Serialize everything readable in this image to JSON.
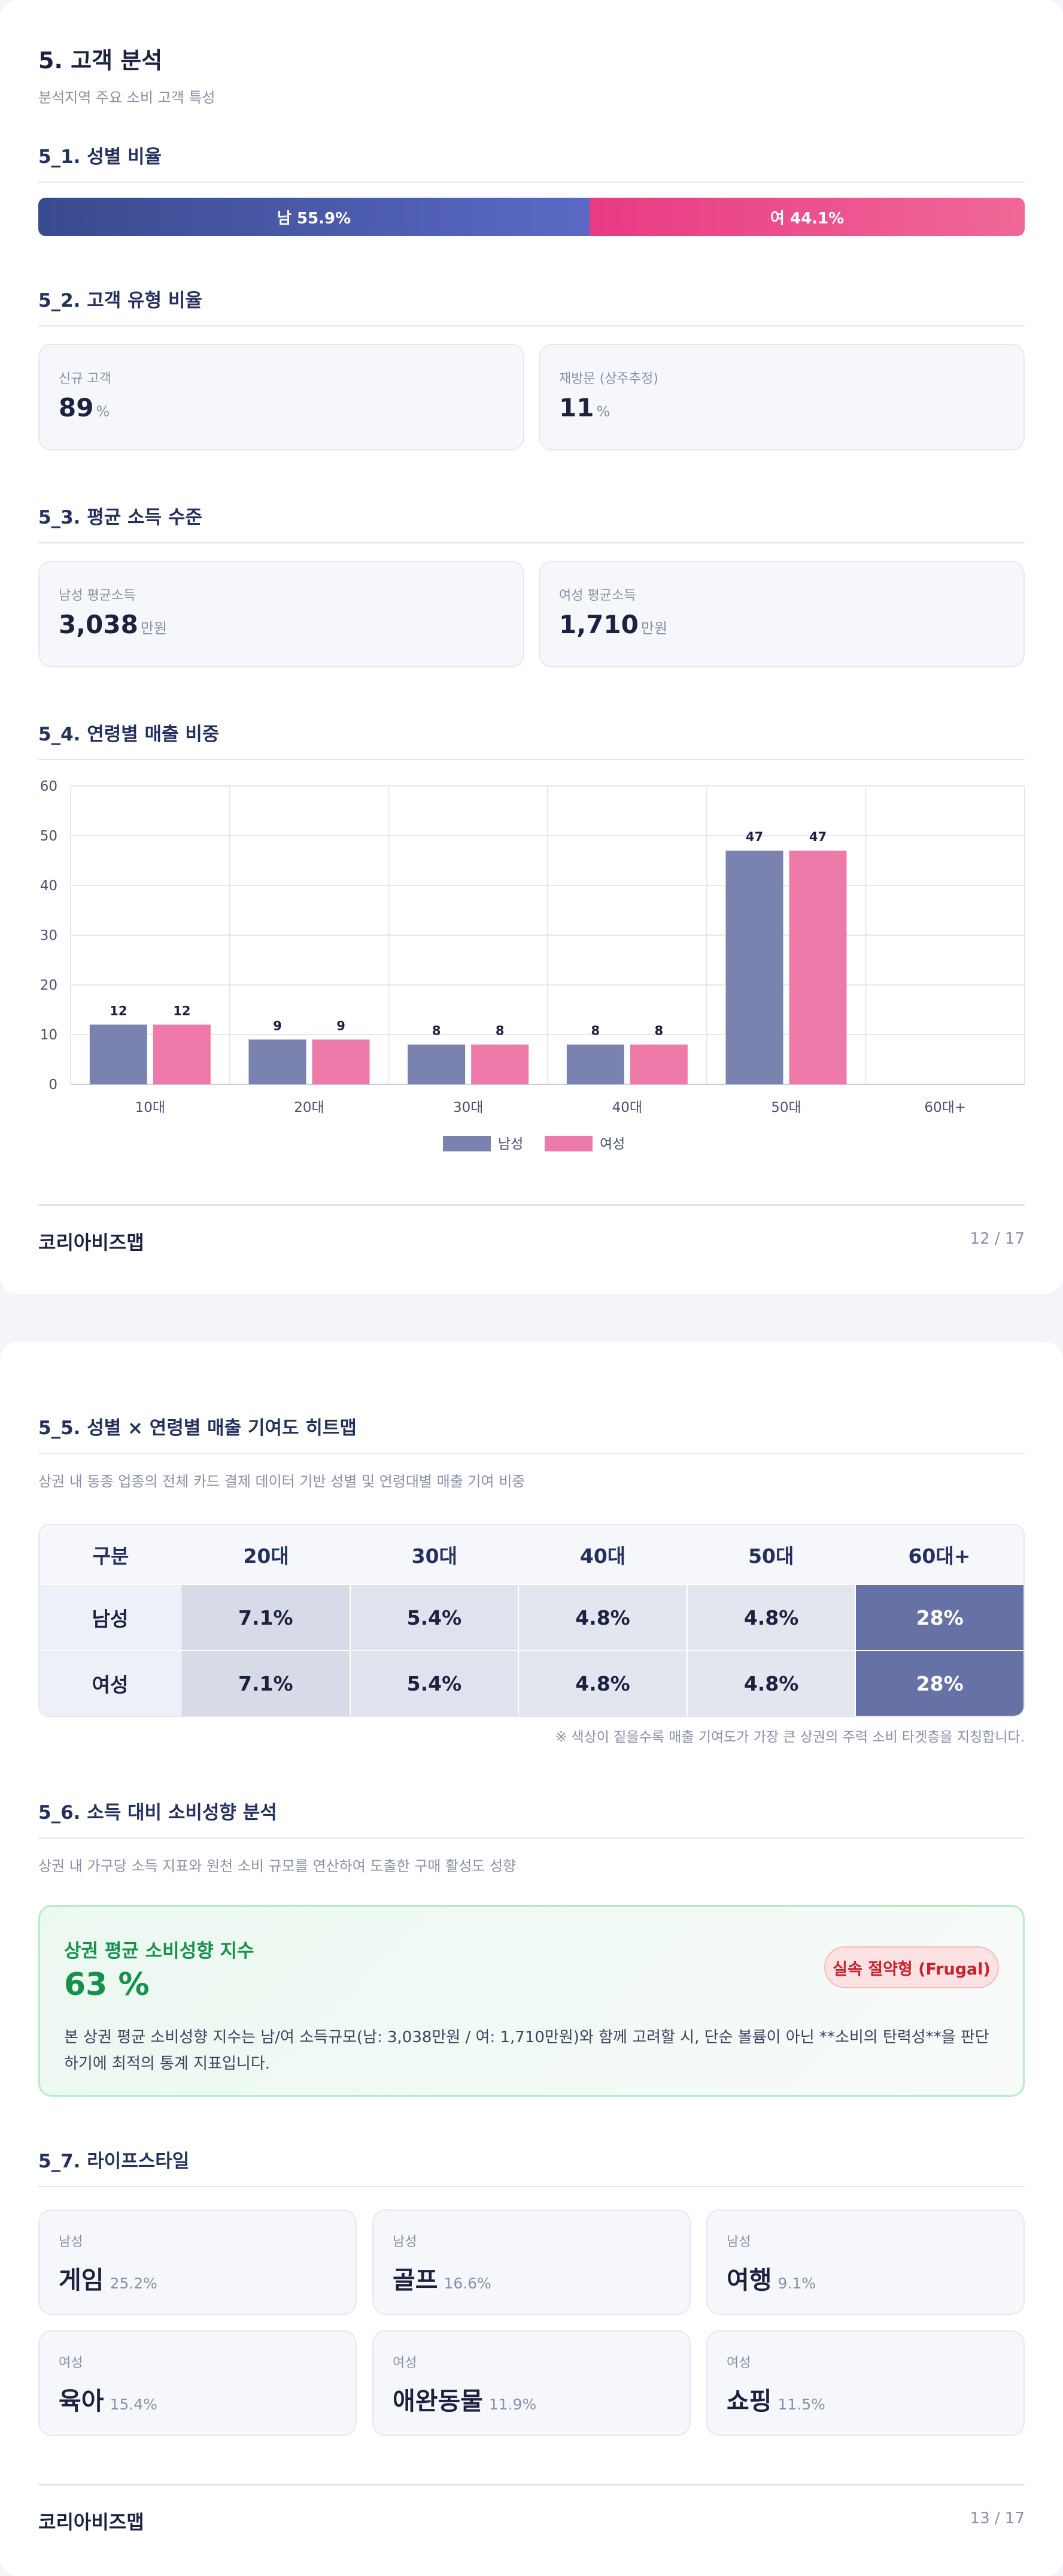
{
  "page1": {
    "title": "5. 고객 분석",
    "subtitle": "분석지역 주요 소비 고객 특성",
    "gender_ratio": {
      "heading": "5_1. 성별 비율",
      "male_label": "남 55.9%",
      "female_label": "여 44.1%",
      "male_share": 0.559
    },
    "customer_type": {
      "heading": "5_2. 고객 유형 비율",
      "new": {
        "label": "신규 고객",
        "value": "89",
        "unit": "%"
      },
      "returning": {
        "label": "재방문 (상주추정)",
        "value": "11",
        "unit": "%"
      }
    },
    "income": {
      "heading": "5_3. 평균 소득 수준",
      "male": {
        "label": "남성 평균소득",
        "value": "3,038",
        "unit": "만원"
      },
      "female": {
        "label": "여성 평균소득",
        "value": "1,710",
        "unit": "만원"
      }
    },
    "age_sales": {
      "heading": "5_4. 연령별 매출 비중"
    },
    "footer": {
      "brand": "코리아비즈맵",
      "page": "12 / 17"
    }
  },
  "chart_data": {
    "type": "bar",
    "categories": [
      "10대",
      "20대",
      "30대",
      "40대",
      "50대",
      "60대+"
    ],
    "series": [
      {
        "name": "남성",
        "values": [
          12,
          9,
          8,
          8,
          47,
          null
        ],
        "color": "#7a82b0"
      },
      {
        "name": "여성",
        "values": [
          12,
          9,
          8,
          8,
          47,
          null
        ],
        "color": "#ed7aa8"
      }
    ],
    "ylim": [
      0,
      60
    ],
    "yticks": [
      0,
      10,
      20,
      30,
      40,
      50,
      60
    ],
    "grid": true,
    "legend": "bottom-center"
  },
  "page2": {
    "heatmap": {
      "heading": "5_5. 성별 × 연령별 매출 기여도 히트맵",
      "description": "상권 내 동종 업종의 전체 카드 결제 데이터 기반 성별 및 연령대별 매출 기여 비중",
      "header": [
        "구분",
        "20대",
        "30대",
        "40대",
        "50대",
        "60대+"
      ],
      "rows": [
        {
          "label": "남성",
          "cells": [
            "7.1%",
            "5.4%",
            "4.8%",
            "4.8%",
            "28%"
          ],
          "level": [
            0.25,
            0.15,
            0.1,
            0.1,
            1.0
          ]
        },
        {
          "label": "여성",
          "cells": [
            "7.1%",
            "5.4%",
            "4.8%",
            "4.8%",
            "28%"
          ],
          "level": [
            0.25,
            0.15,
            0.1,
            0.1,
            1.0
          ]
        }
      ],
      "note": "※ 색상이 짙을수록 매출 기여도가 가장 큰 상권의 주력 소비 타겟층을 지칭합니다."
    },
    "consumption": {
      "heading": "5_6. 소득 대비 소비성향 분석",
      "description": "상권 내 가구당 소득 지표와 원천 소비 규모를 연산하여 도출한 구매 활성도 성향",
      "box_title": "상권 평균 소비성향 지수",
      "value": "63 %",
      "badge": "실속 절약형 (Frugal)",
      "text": "본 상권 평균 소비성향 지수는 남/여 소득규모(남: 3,038만원 / 여: 1,710만원)와 함께 고려할 시, 단순 볼륨이 아닌 **소비의 탄력성**을 판단하기에 최적의 통계 지표입니다."
    },
    "lifestyle": {
      "heading": "5_7. 라이프스타일",
      "items": [
        {
          "gender": "남성",
          "name": "게임",
          "pct": "25.2%"
        },
        {
          "gender": "남성",
          "name": "골프",
          "pct": "16.6%"
        },
        {
          "gender": "남성",
          "name": "여행",
          "pct": "9.1%"
        },
        {
          "gender": "여성",
          "name": "육아",
          "pct": "15.4%"
        },
        {
          "gender": "여성",
          "name": "애완동물",
          "pct": "11.9%"
        },
        {
          "gender": "여성",
          "name": "쇼핑",
          "pct": "11.5%"
        }
      ]
    },
    "footer": {
      "brand": "코리아비즈맵",
      "page": "13 / 17"
    }
  }
}
